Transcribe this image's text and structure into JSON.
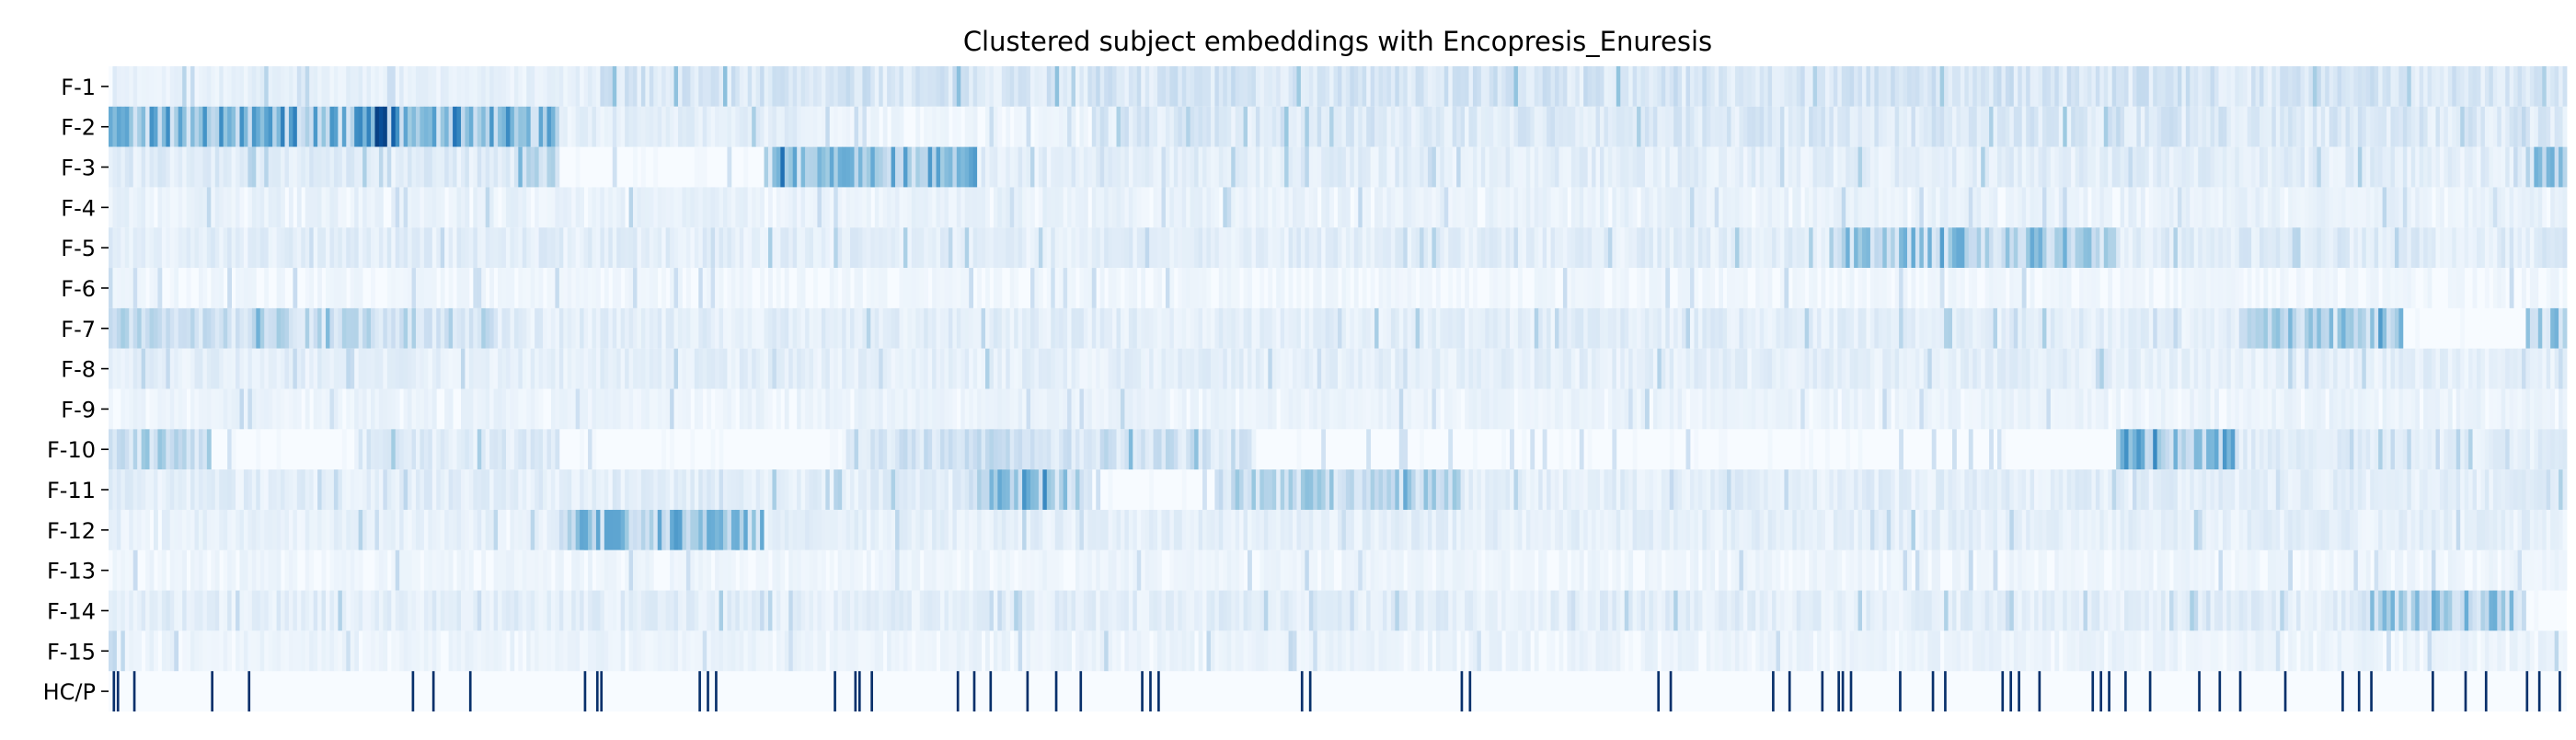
{
  "chart_data": {
    "type": "heatmap",
    "title": "Clustered subject embeddings with Encopresis_Enuresis",
    "xlabel": "",
    "ylabel": "",
    "row_labels": [
      "F-1",
      "F-2",
      "F-3",
      "F-4",
      "F-5",
      "F-6",
      "F-7",
      "F-8",
      "F-9",
      "F-10",
      "F-11",
      "F-12",
      "F-13",
      "F-14",
      "F-15",
      "HC/P"
    ],
    "n_columns": 600,
    "colormap": "Blues",
    "value_range": [
      0,
      1
    ],
    "grid": false,
    "colorbar": false,
    "feature_activation_segments": [
      {
        "row": "F-1",
        "segments": [
          [
            0,
            120,
            0.08
          ],
          [
            120,
            600,
            0.16
          ]
        ]
      },
      {
        "row": "F-2",
        "segments": [
          [
            0,
            110,
            0.42
          ],
          [
            60,
            70,
            0.62
          ],
          [
            110,
            170,
            0.1
          ],
          [
            170,
            240,
            0.05
          ],
          [
            240,
            600,
            0.14
          ]
        ]
      },
      {
        "row": "F-3",
        "segments": [
          [
            0,
            110,
            0.12
          ],
          [
            100,
            110,
            0.3
          ],
          [
            160,
            212,
            0.38
          ],
          [
            212,
            600,
            0.1
          ],
          [
            590,
            600,
            0.3
          ]
        ]
      },
      {
        "row": "F-4",
        "segments": [
          [
            0,
            600,
            0.07
          ]
        ]
      },
      {
        "row": "F-5",
        "segments": [
          [
            0,
            420,
            0.1
          ],
          [
            420,
            490,
            0.32
          ],
          [
            490,
            600,
            0.12
          ]
        ]
      },
      {
        "row": "F-6",
        "segments": [
          [
            0,
            600,
            0.04
          ]
        ]
      },
      {
        "row": "F-7",
        "segments": [
          [
            0,
            95,
            0.22
          ],
          [
            95,
            520,
            0.1
          ],
          [
            520,
            560,
            0.3
          ],
          [
            590,
            600,
            0.3
          ]
        ]
      },
      {
        "row": "F-8",
        "segments": [
          [
            0,
            600,
            0.09
          ]
        ]
      },
      {
        "row": "F-9",
        "segments": [
          [
            0,
            600,
            0.06
          ]
        ]
      },
      {
        "row": "F-10",
        "segments": [
          [
            0,
            25,
            0.25
          ],
          [
            60,
            110,
            0.12
          ],
          [
            180,
            280,
            0.18
          ],
          [
            490,
            520,
            0.38
          ],
          [
            520,
            600,
            0.1
          ]
        ]
      },
      {
        "row": "F-11",
        "segments": [
          [
            0,
            210,
            0.1
          ],
          [
            210,
            240,
            0.35
          ],
          [
            270,
            330,
            0.26
          ],
          [
            330,
            600,
            0.1
          ]
        ]
      },
      {
        "row": "F-12",
        "segments": [
          [
            0,
            110,
            0.08
          ],
          [
            110,
            160,
            0.34
          ],
          [
            160,
            600,
            0.09
          ]
        ]
      },
      {
        "row": "F-13",
        "segments": [
          [
            0,
            600,
            0.05
          ]
        ]
      },
      {
        "row": "F-14",
        "segments": [
          [
            0,
            550,
            0.1
          ],
          [
            550,
            590,
            0.32
          ]
        ]
      },
      {
        "row": "F-15",
        "segments": [
          [
            0,
            600,
            0.06
          ]
        ]
      }
    ],
    "hc_p_marked_columns": [
      1,
      2,
      6,
      25,
      34,
      74,
      79,
      88,
      116,
      119,
      120,
      144,
      146,
      148,
      177,
      182,
      183,
      186,
      207,
      211,
      215,
      224,
      231,
      237,
      252,
      254,
      256,
      291,
      293,
      330,
      332,
      378,
      381,
      406,
      410,
      418,
      422,
      423,
      425,
      437,
      445,
      448,
      462,
      464,
      466,
      471,
      484,
      486,
      488,
      492,
      498,
      510,
      515,
      520,
      531,
      545,
      549,
      552,
      567,
      575,
      580,
      590,
      593,
      598
    ]
  }
}
